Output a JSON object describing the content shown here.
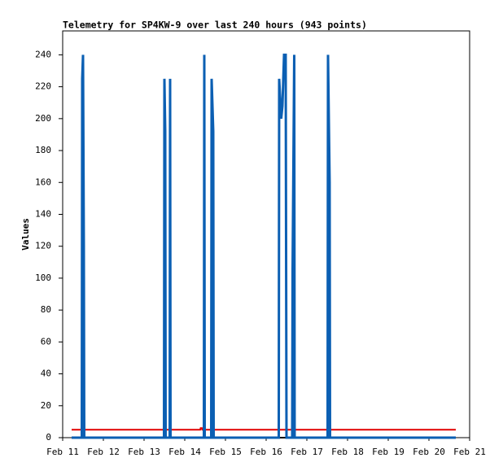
{
  "chart_data": {
    "type": "line",
    "title": "Telemetry for SP4KW-9 over last 240 hours (943 points)",
    "y_label": "Values",
    "xlim": [
      0,
      10
    ],
    "ylim": [
      0,
      255
    ],
    "xticks": [
      {
        "value": 0,
        "label": "Feb 11"
      },
      {
        "value": 1,
        "label": "Feb 12"
      },
      {
        "value": 2,
        "label": "Feb 13"
      },
      {
        "value": 3,
        "label": "Feb 14"
      },
      {
        "value": 4,
        "label": "Feb 15"
      },
      {
        "value": 5,
        "label": "Feb 16"
      },
      {
        "value": 6,
        "label": "Feb 17"
      },
      {
        "value": 7,
        "label": "Feb 18"
      },
      {
        "value": 8,
        "label": "Feb 19"
      },
      {
        "value": 9,
        "label": "Feb 20"
      },
      {
        "value": 10,
        "label": "Feb 21"
      }
    ],
    "yticks": [
      0,
      20,
      40,
      60,
      80,
      100,
      120,
      140,
      160,
      180,
      200,
      220,
      240
    ],
    "series": [
      {
        "color": "#000000",
        "x": [
          0.22,
          9.66
        ],
        "values": [
          0,
          0
        ]
      },
      {
        "color": "#e00000",
        "x": [
          0.22,
          3.38,
          3.39,
          3.42,
          3.43,
          9.66
        ],
        "values": [
          5,
          5,
          6,
          6,
          5,
          5
        ]
      },
      {
        "color": "#0b5fb3",
        "x": [
          0.22,
          0.47,
          0.48,
          0.5,
          0.52,
          0.53,
          2.49,
          2.5,
          2.52,
          2.53,
          2.63,
          2.64,
          2.65,
          3.47,
          3.48,
          3.49,
          3.65,
          3.66,
          3.7,
          3.71,
          5.31,
          5.32,
          5.37,
          5.4,
          5.44,
          5.48,
          5.5,
          5.64,
          5.65,
          5.69,
          5.7,
          6.51,
          6.52,
          6.56,
          6.57,
          9.66
        ],
        "values": [
          0,
          0,
          225,
          240,
          120,
          0,
          0,
          225,
          192,
          0,
          0,
          225,
          0,
          0,
          240,
          0,
          0,
          225,
          192,
          0,
          0,
          225,
          200,
          208,
          240,
          240,
          0,
          0,
          105,
          240,
          0,
          0,
          240,
          160,
          0,
          0
        ]
      }
    ]
  }
}
